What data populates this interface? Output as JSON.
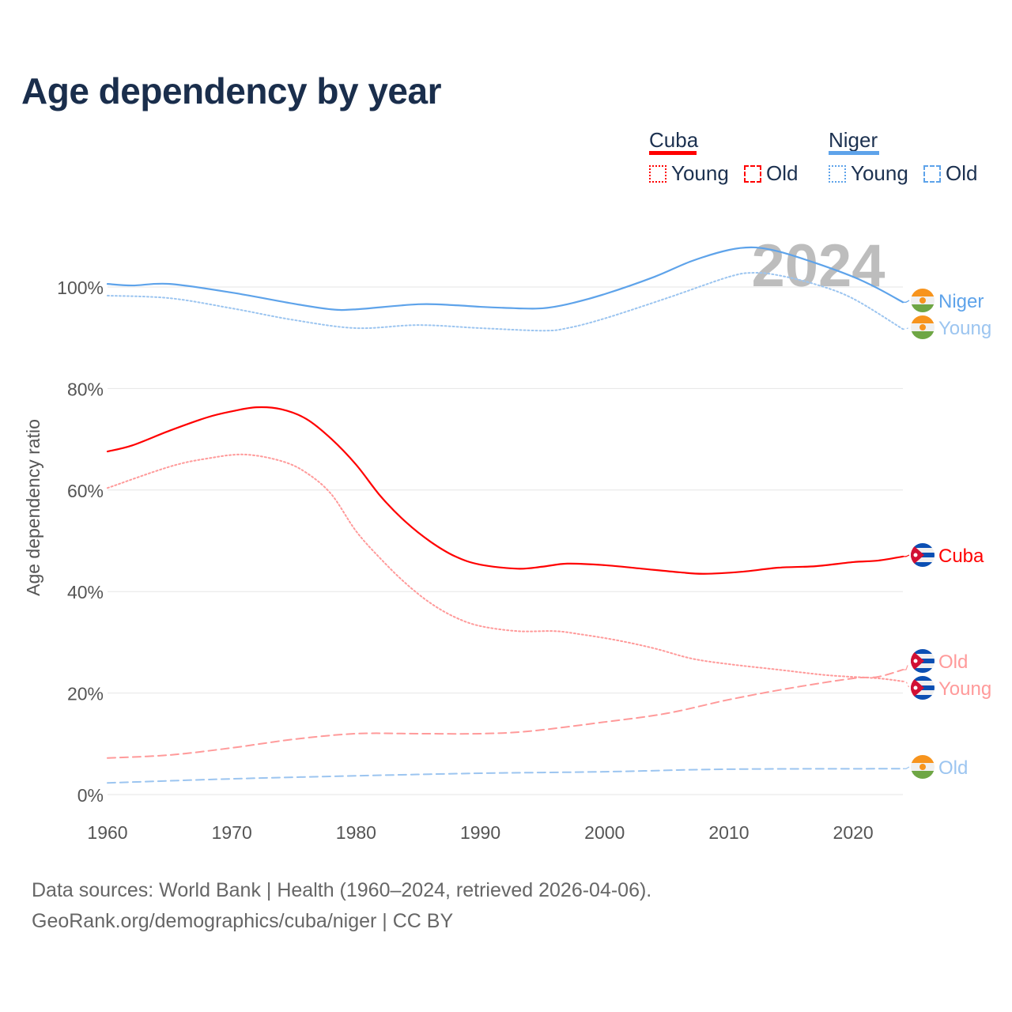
{
  "title": "Age dependency by year",
  "legend": {
    "countries": [
      {
        "name": "Cuba",
        "color": "#ff0000",
        "items": [
          "Young",
          "Old"
        ]
      },
      {
        "name": "Niger",
        "color": "#5ea3ea",
        "items": [
          "Young",
          "Old"
        ]
      }
    ]
  },
  "source_lines": [
    "Data sources: World Bank | Health (1960–2024, retrieved 2026-04-06).",
    "GeoRank.org/demographics/cuba/niger | CC BY"
  ],
  "chart_data": {
    "type": "line",
    "title": "Age dependency by year",
    "current_year": "2024",
    "xlabel": "",
    "ylabel": "Age dependency ratio",
    "xlim": [
      1960,
      2024
    ],
    "ylim": [
      0,
      110
    ],
    "x_ticks": [
      "1960",
      "1970",
      "1980",
      "1990",
      "2000",
      "2010",
      "2020"
    ],
    "y_ticks": [
      "0%",
      "20%",
      "40%",
      "60%",
      "80%",
      "100%"
    ],
    "grid": true,
    "legend_position": "top-right",
    "series": [
      {
        "name": "Niger",
        "label": "Niger",
        "country": "Niger",
        "kind": "total",
        "color": "#5ea3ea",
        "dash": "",
        "points": [
          [
            1960,
            100.6
          ],
          [
            1962,
            100.3
          ],
          [
            1965,
            100.6
          ],
          [
            1970,
            98.9
          ],
          [
            1975,
            96.7
          ],
          [
            1978,
            95.6
          ],
          [
            1980,
            95.6
          ],
          [
            1985,
            96.6
          ],
          [
            1988,
            96.4
          ],
          [
            1990,
            96.1
          ],
          [
            1993,
            95.8
          ],
          [
            1995,
            95.8
          ],
          [
            1997,
            96.6
          ],
          [
            2000,
            98.6
          ],
          [
            2004,
            102
          ],
          [
            2007,
            105.1
          ],
          [
            2010,
            107.3
          ],
          [
            2012,
            107.8
          ],
          [
            2014,
            107
          ],
          [
            2017,
            104.7
          ],
          [
            2020,
            102
          ],
          [
            2022,
            99.7
          ],
          [
            2024,
            97
          ]
        ]
      },
      {
        "name": "Niger Young",
        "label": "Young",
        "country": "Niger",
        "kind": "young",
        "color": "#9cc5f0",
        "dash": "2,3",
        "points": [
          [
            1960,
            98.3
          ],
          [
            1965,
            97.8
          ],
          [
            1970,
            95.8
          ],
          [
            1975,
            93.5
          ],
          [
            1980,
            91.9
          ],
          [
            1985,
            92.5
          ],
          [
            1990,
            91.9
          ],
          [
            1995,
            91.4
          ],
          [
            1997,
            91.9
          ],
          [
            2000,
            93.8
          ],
          [
            2005,
            97.8
          ],
          [
            2010,
            102
          ],
          [
            2012,
            102.8
          ],
          [
            2014,
            102.3
          ],
          [
            2017,
            100.5
          ],
          [
            2020,
            97.7
          ],
          [
            2024,
            91.7
          ]
        ]
      },
      {
        "name": "Niger Old",
        "label": "Old",
        "country": "Niger",
        "kind": "old",
        "color": "#9cc5f0",
        "dash": "10,6",
        "points": [
          [
            1960,
            2.3
          ],
          [
            1970,
            3.1
          ],
          [
            1980,
            3.7
          ],
          [
            1990,
            4.2
          ],
          [
            2000,
            4.5
          ],
          [
            2010,
            5.0
          ],
          [
            2024,
            5.1
          ]
        ]
      },
      {
        "name": "Cuba",
        "label": "Cuba",
        "country": "Cuba",
        "kind": "total",
        "color": "#ff0000",
        "dash": "",
        "points": [
          [
            1960,
            67.6
          ],
          [
            1962,
            68.8
          ],
          [
            1965,
            71.7
          ],
          [
            1968,
            74.3
          ],
          [
            1970,
            75.5
          ],
          [
            1972,
            76.3
          ],
          [
            1974,
            75.9
          ],
          [
            1976,
            74
          ],
          [
            1978,
            70.1
          ],
          [
            1980,
            65
          ],
          [
            1982,
            58.7
          ],
          [
            1984,
            53.7
          ],
          [
            1986,
            49.8
          ],
          [
            1988,
            46.9
          ],
          [
            1990,
            45.3
          ],
          [
            1993,
            44.5
          ],
          [
            1995,
            44.9
          ],
          [
            1997,
            45.5
          ],
          [
            2000,
            45.2
          ],
          [
            2003,
            44.5
          ],
          [
            2006,
            43.8
          ],
          [
            2008,
            43.5
          ],
          [
            2011,
            43.9
          ],
          [
            2014,
            44.7
          ],
          [
            2017,
            45
          ],
          [
            2020,
            45.8
          ],
          [
            2022,
            46.1
          ],
          [
            2024,
            46.9
          ]
        ]
      },
      {
        "name": "Cuba Young",
        "label": "Young",
        "country": "Cuba",
        "kind": "young",
        "color": "#ff9a9a",
        "dash": "2,3",
        "points": [
          [
            1960,
            60.4
          ],
          [
            1965,
            64.6
          ],
          [
            1968,
            66.2
          ],
          [
            1971,
            67
          ],
          [
            1974,
            65.7
          ],
          [
            1976,
            63.4
          ],
          [
            1978,
            59.2
          ],
          [
            1980,
            51.9
          ],
          [
            1982,
            46.4
          ],
          [
            1984,
            41.6
          ],
          [
            1986,
            37.7
          ],
          [
            1988,
            34.9
          ],
          [
            1990,
            33.2
          ],
          [
            1993,
            32.2
          ],
          [
            1996,
            32.2
          ],
          [
            1998,
            31.6
          ],
          [
            2001,
            30.4
          ],
          [
            2004,
            28.8
          ],
          [
            2007,
            26.8
          ],
          [
            2010,
            25.7
          ],
          [
            2014,
            24.6
          ],
          [
            2018,
            23.5
          ],
          [
            2022,
            22.9
          ],
          [
            2024,
            22.3
          ]
        ]
      },
      {
        "name": "Cuba Old",
        "label": "Old",
        "country": "Cuba",
        "kind": "old",
        "color": "#ff9a9a",
        "dash": "10,6",
        "points": [
          [
            1960,
            7.2
          ],
          [
            1965,
            7.8
          ],
          [
            1970,
            9.2
          ],
          [
            1975,
            10.9
          ],
          [
            1980,
            12
          ],
          [
            1985,
            12
          ],
          [
            1990,
            12
          ],
          [
            1994,
            12.5
          ],
          [
            2000,
            14.3
          ],
          [
            2005,
            16
          ],
          [
            2010,
            18.7
          ],
          [
            2015,
            21
          ],
          [
            2020,
            22.9
          ],
          [
            2022,
            23.2
          ],
          [
            2024,
            24.6
          ]
        ]
      }
    ]
  }
}
